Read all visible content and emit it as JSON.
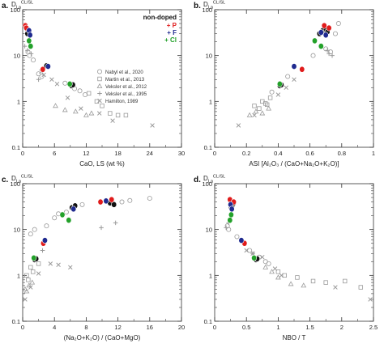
{
  "figure": {
    "markers": {
      "nabyl_2020": "circle",
      "martin_2013": "square",
      "veksler_2012": "triangle",
      "veksler_1995": "plus",
      "hamilton_1989": "cross",
      "non_doped": "filled-circle-with-ring"
    },
    "colors": {
      "non_doped": "#111111",
      "P": "#e01b1b",
      "F": "#1f2a8f",
      "Cl": "#23a12a",
      "literature": "#9a9a9a"
    },
    "legend": {
      "doped_title": "non-doped",
      "doped_entries": [
        {
          "text": "+ P",
          "series": "P"
        },
        {
          "text": "+ F",
          "series": "F"
        },
        {
          "text": "+ Cl",
          "series": "Cl"
        }
      ],
      "literature_entries": [
        {
          "text": "Nabyl et al., 2020",
          "marker": "circle"
        },
        {
          "text": "Martin et al., 2013",
          "marker": "square"
        },
        {
          "text": "Veksler et al., 2012",
          "marker": "triangle"
        },
        {
          "text": "Veksler et al., 1995",
          "marker": "plus"
        },
        {
          "text": "Hamilton, 1989",
          "marker": "cross"
        }
      ]
    }
  },
  "chart_data": [
    {
      "panel_label": "a.",
      "type": "scatter",
      "ylabel_main": "D",
      "ylabel_sub": "La",
      "ylabel_sup": "CL/SL",
      "xlabel": "CaO, LS (wt %)",
      "xlim": [
        0,
        30
      ],
      "ylim": [
        0.1,
        100
      ],
      "yscale": "log",
      "xticks": [
        0,
        6,
        12,
        18,
        24,
        30
      ],
      "yticks": [
        0.1,
        1,
        10,
        100
      ],
      "ytick_labels": [
        "0.1",
        "1",
        "10",
        "100"
      ],
      "legend_position": "top-right",
      "series": [
        {
          "name": "non-doped",
          "marker": "non_doped",
          "points": [
            [
              0.8,
              38
            ],
            [
              1.0,
              33
            ],
            [
              0.9,
              30
            ],
            [
              4.5,
              6.0
            ],
            [
              9.2,
              2.2
            ],
            [
              9.5,
              2.3
            ]
          ]
        },
        {
          "name": "+ P",
          "marker": "P",
          "points": [
            [
              0.5,
              45
            ],
            [
              0.7,
              40
            ],
            [
              3.8,
              5.0
            ]
          ]
        },
        {
          "name": "+ F",
          "marker": "F",
          "points": [
            [
              1.2,
              35
            ],
            [
              1.4,
              28
            ],
            [
              4.8,
              5.8
            ]
          ]
        },
        {
          "name": "+ Cl",
          "marker": "Cl",
          "points": [
            [
              1.2,
              21
            ],
            [
              1.5,
              16
            ],
            [
              8.9,
              2.4
            ]
          ]
        },
        {
          "name": "Nabyl et al., 2020",
          "marker": "circle",
          "points": [
            [
              1.0,
              12
            ],
            [
              1.3,
              10
            ],
            [
              2.0,
              8
            ],
            [
              3.0,
              4.0
            ],
            [
              3.6,
              3.5
            ],
            [
              8.0,
              2.5
            ],
            [
              9.8,
              1.9
            ],
            [
              10.8,
              1.7
            ],
            [
              11.8,
              1.4
            ]
          ]
        },
        {
          "name": "Martin et al., 2013",
          "marker": "square",
          "points": [
            [
              12.5,
              1.5
            ],
            [
              14.0,
              1.0
            ],
            [
              15.0,
              0.8
            ],
            [
              16.5,
              0.55
            ],
            [
              18.0,
              0.5
            ],
            [
              19.5,
              0.5
            ]
          ]
        },
        {
          "name": "Veksler et al., 2012",
          "marker": "triangle",
          "points": [
            [
              6.2,
              0.8
            ],
            [
              8.0,
              0.65
            ],
            [
              10.0,
              0.6
            ],
            [
              12.0,
              0.5
            ],
            [
              13.0,
              0.55
            ]
          ]
        },
        {
          "name": "Veksler et al., 1995",
          "marker": "plus",
          "points": [
            [
              0.4,
              16
            ],
            [
              0.9,
              13
            ],
            [
              1.6,
              11
            ],
            [
              3.0,
              3.0
            ]
          ]
        },
        {
          "name": "Hamilton, 1989",
          "marker": "cross",
          "points": [
            [
              3.5,
              4.5
            ],
            [
              4.0,
              3.8
            ],
            [
              5.5,
              3.0
            ],
            [
              6.5,
              2.4
            ],
            [
              8.5,
              1.2
            ],
            [
              11.0,
              0.7
            ],
            [
              14.5,
              0.55
            ],
            [
              17.0,
              0.38
            ],
            [
              24.5,
              0.3
            ]
          ]
        }
      ]
    },
    {
      "panel_label": "b.",
      "type": "scatter",
      "ylabel_main": "D",
      "ylabel_sub": "La",
      "ylabel_sup": "CL/SL",
      "xlabel": "ASI [Al₂O₃ / (CaO+Na₂O+K₂O)]",
      "xlim": [
        0,
        1
      ],
      "ylim": [
        0.1,
        100
      ],
      "yscale": "log",
      "xticks": [
        0,
        0.2,
        0.4,
        0.6,
        0.8,
        1
      ],
      "xtick_labels": [
        "0",
        "0.2",
        "0.4",
        "0.6",
        "0.8",
        "1"
      ],
      "yticks": [
        0.1,
        1,
        10,
        100
      ],
      "ytick_labels": [
        "0.1",
        "1",
        "10",
        "100"
      ],
      "series": [
        {
          "name": "non-doped",
          "marker": "non_doped",
          "points": [
            [
              0.66,
              30
            ],
            [
              0.68,
              35
            ],
            [
              0.7,
              38
            ],
            [
              0.71,
              33
            ],
            [
              0.41,
              2.2
            ],
            [
              0.42,
              2.3
            ]
          ]
        },
        {
          "name": "+ P",
          "marker": "P",
          "points": [
            [
              0.69,
              45
            ],
            [
              0.72,
              40
            ],
            [
              0.55,
              5.0
            ]
          ]
        },
        {
          "name": "+ F",
          "marker": "F",
          "points": [
            [
              0.67,
              32
            ],
            [
              0.7,
              28
            ],
            [
              0.5,
              5.8
            ]
          ]
        },
        {
          "name": "+ Cl",
          "marker": "Cl",
          "points": [
            [
              0.63,
              21
            ],
            [
              0.67,
              16
            ],
            [
              0.41,
              2.4
            ]
          ]
        },
        {
          "name": "Nabyl et al., 2020",
          "marker": "circle",
          "points": [
            [
              0.7,
              14
            ],
            [
              0.73,
              12
            ],
            [
              0.76,
              30
            ],
            [
              0.78,
              50
            ],
            [
              0.62,
              10
            ],
            [
              0.46,
              3.5
            ],
            [
              0.36,
              1.6
            ]
          ]
        },
        {
          "name": "Martin et al., 2013",
          "marker": "square",
          "points": [
            [
              0.3,
              1.0
            ],
            [
              0.32,
              0.9
            ],
            [
              0.33,
              0.85
            ],
            [
              0.35,
              1.2
            ],
            [
              0.25,
              0.8
            ],
            [
              0.28,
              0.7
            ]
          ]
        },
        {
          "name": "Veksler et al., 2012",
          "marker": "triangle",
          "points": [
            [
              0.22,
              0.5
            ],
            [
              0.26,
              0.6
            ],
            [
              0.3,
              0.55
            ],
            [
              0.34,
              0.7
            ]
          ]
        },
        {
          "name": "Veksler et al., 1995",
          "marker": "plus",
          "points": [
            [
              0.71,
              13
            ],
            [
              0.72,
              11
            ],
            [
              0.74,
              10
            ]
          ]
        },
        {
          "name": "Hamilton, 1989",
          "marker": "cross",
          "points": [
            [
              0.15,
              0.3
            ],
            [
              0.25,
              0.5
            ],
            [
              0.4,
              1.4
            ],
            [
              0.45,
              2.0
            ],
            [
              0.5,
              3.0
            ]
          ]
        }
      ]
    },
    {
      "panel_label": "c.",
      "type": "scatter",
      "ylabel_main": "D",
      "ylabel_sub": "La",
      "ylabel_sup": "CL/SL",
      "xlabel": "(Na₂O+K₂O) / (CaO+MgO)",
      "xlim": [
        0,
        20
      ],
      "ylim": [
        0.1,
        100
      ],
      "yscale": "log",
      "xticks": [
        0,
        4,
        8,
        12,
        16,
        20
      ],
      "yticks": [
        0.1,
        1,
        10,
        100
      ],
      "ytick_labels": [
        "0.1",
        "1",
        "10",
        "100"
      ],
      "series": [
        {
          "name": "non-doped",
          "marker": "non_doped",
          "points": [
            [
              6.2,
              30
            ],
            [
              6.6,
              33
            ],
            [
              11.0,
              38
            ],
            [
              11.5,
              35
            ],
            [
              1.5,
              2.2
            ],
            [
              1.7,
              2.3
            ]
          ]
        },
        {
          "name": "+ P",
          "marker": "P",
          "points": [
            [
              9.8,
              40
            ],
            [
              11.2,
              45
            ],
            [
              2.6,
              5.0
            ]
          ]
        },
        {
          "name": "+ F",
          "marker": "F",
          "points": [
            [
              6.4,
              28
            ],
            [
              10.5,
              42
            ],
            [
              2.8,
              5.8
            ]
          ]
        },
        {
          "name": "+ Cl",
          "marker": "Cl",
          "points": [
            [
              5.0,
              21
            ],
            [
              5.8,
              16
            ],
            [
              1.4,
              2.4
            ]
          ]
        },
        {
          "name": "Nabyl et al., 2020",
          "marker": "circle",
          "points": [
            [
              1.0,
              8
            ],
            [
              1.5,
              10
            ],
            [
              3.0,
              12
            ],
            [
              4.0,
              18
            ],
            [
              4.5,
              22
            ],
            [
              5.5,
              24
            ],
            [
              7.5,
              35
            ],
            [
              12.5,
              40
            ],
            [
              13.5,
              43
            ],
            [
              16.0,
              48
            ]
          ]
        },
        {
          "name": "Martin et al., 2013",
          "marker": "square",
          "points": [
            [
              0.5,
              1.0
            ],
            [
              0.7,
              0.8
            ],
            [
              1.0,
              1.5
            ],
            [
              1.3,
              1.2
            ],
            [
              2.0,
              1.8
            ]
          ]
        },
        {
          "name": "Veksler et al., 2012",
          "marker": "triangle",
          "points": [
            [
              0.3,
              0.5
            ],
            [
              0.5,
              0.45
            ],
            [
              0.8,
              0.6
            ],
            [
              1.2,
              0.7
            ]
          ]
        },
        {
          "name": "Veksler et al., 1995",
          "marker": "plus",
          "points": [
            [
              9.9,
              11
            ],
            [
              11.7,
              14
            ],
            [
              2.5,
              3.5
            ]
          ]
        },
        {
          "name": "Hamilton, 1989",
          "marker": "cross",
          "points": [
            [
              0.3,
              0.3
            ],
            [
              1.0,
              0.55
            ],
            [
              2.0,
              1.1
            ],
            [
              3.5,
              1.8
            ],
            [
              4.5,
              1.7
            ],
            [
              6.0,
              1.5
            ]
          ]
        }
      ]
    },
    {
      "panel_label": "d.",
      "type": "scatter",
      "ylabel_main": "D",
      "ylabel_sub": "La",
      "ylabel_sup": "CL/SL",
      "xlabel": "NBO / T",
      "xlim": [
        0,
        2.5
      ],
      "ylim": [
        0.1,
        100
      ],
      "yscale": "log",
      "xticks": [
        0,
        0.5,
        1,
        1.5,
        2,
        2.5
      ],
      "xtick_labels": [
        "0",
        "0.5",
        "1",
        "1.5",
        "2",
        "2.5"
      ],
      "yticks": [
        0.1,
        1,
        10,
        100
      ],
      "ytick_labels": [
        "0.1",
        "1",
        "10",
        "100"
      ],
      "series": [
        {
          "name": "non-doped",
          "marker": "non_doped",
          "points": [
            [
              0.26,
              30
            ],
            [
              0.28,
              34
            ],
            [
              0.3,
              38
            ],
            [
              0.65,
              2.2
            ],
            [
              0.67,
              2.3
            ]
          ]
        },
        {
          "name": "+ P",
          "marker": "P",
          "points": [
            [
              0.24,
              45
            ],
            [
              0.3,
              40
            ],
            [
              0.47,
              5.0
            ]
          ]
        },
        {
          "name": "+ F",
          "marker": "F",
          "points": [
            [
              0.25,
              35
            ],
            [
              0.27,
              28
            ],
            [
              0.42,
              5.8
            ]
          ]
        },
        {
          "name": "+ Cl",
          "marker": "Cl",
          "points": [
            [
              0.26,
              21
            ],
            [
              0.24,
              16
            ],
            [
              0.62,
              2.4
            ]
          ]
        },
        {
          "name": "Nabyl et al., 2020",
          "marker": "circle",
          "points": [
            [
              0.2,
              12
            ],
            [
              0.22,
              10
            ],
            [
              0.35,
              7
            ],
            [
              0.55,
              3.5
            ],
            [
              0.7,
              2.5
            ],
            [
              0.8,
              2.0
            ],
            [
              0.85,
              1.8
            ]
          ]
        },
        {
          "name": "Martin et al., 2013",
          "marker": "square",
          "points": [
            [
              1.0,
              1.2
            ],
            [
              1.1,
              1.0
            ],
            [
              1.3,
              0.9
            ],
            [
              1.55,
              0.75
            ],
            [
              1.75,
              0.7
            ],
            [
              2.05,
              0.75
            ],
            [
              2.3,
              0.55
            ]
          ]
        },
        {
          "name": "Veksler et al., 2012",
          "marker": "triangle",
          "points": [
            [
              0.8,
              1.5
            ],
            [
              0.9,
              1.2
            ],
            [
              1.0,
              0.9
            ],
            [
              1.2,
              0.65
            ],
            [
              1.4,
              0.6
            ]
          ]
        },
        {
          "name": "Veksler et al., 1995",
          "marker": "plus",
          "points": [
            [
              0.18,
              11
            ],
            [
              0.22,
              14
            ],
            [
              0.6,
              3.0
            ]
          ]
        },
        {
          "name": "Hamilton, 1989",
          "marker": "cross",
          "points": [
            [
              0.5,
              3.5
            ],
            [
              0.6,
              3.0
            ],
            [
              0.75,
              2.5
            ],
            [
              0.95,
              1.4
            ],
            [
              1.05,
              1.0
            ],
            [
              1.9,
              0.55
            ],
            [
              2.45,
              0.3
            ]
          ]
        }
      ]
    }
  ]
}
